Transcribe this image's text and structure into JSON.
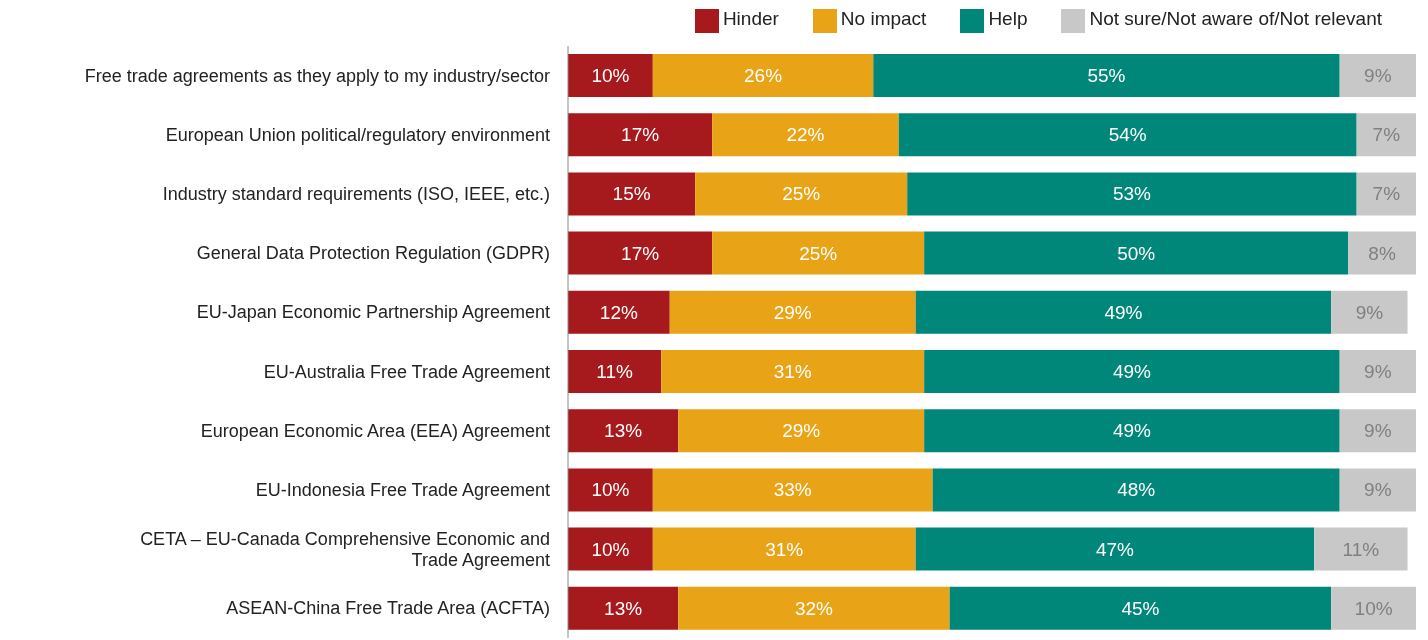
{
  "chart_data": {
    "type": "bar",
    "orientation": "horizontal",
    "stacked": true,
    "legend": "top right",
    "tick_labels": "y",
    "xlim": [
      0,
      100
    ],
    "categories": [
      "Free trade agreements as they apply to my industry/sector",
      "European Union political/regulatory environment",
      "Industry standard requirements (ISO, IEEE, etc.)",
      "General Data Protection Regulation (GDPR)",
      "EU-Japan Economic Partnership Agreement",
      "EU-Australia Free Trade Agreement",
      "European Economic Area (EEA) Agreement",
      "EU-Indonesia Free Trade Agreement",
      "CETA – EU-Canada Comprehensive Economic and Trade Agreement",
      "ASEAN-China Free Trade Area (ACFTA)"
    ],
    "series": [
      {
        "name": "Hinder",
        "color": "#a6191c",
        "values": [
          10,
          17,
          15,
          17,
          12,
          11,
          13,
          10,
          10,
          13
        ],
        "value_labels": [
          "10%",
          "17%",
          "15%",
          "17%",
          "12%",
          "11%",
          "13%",
          "10%",
          "10%",
          "13%"
        ]
      },
      {
        "name": "No impact",
        "color": "#e8a317",
        "values": [
          26,
          22,
          25,
          25,
          29,
          31,
          29,
          33,
          31,
          32
        ],
        "value_labels": [
          "26%",
          "22%",
          "25%",
          "25%",
          "29%",
          "31%",
          "29%",
          "33%",
          "31%",
          "32%"
        ]
      },
      {
        "name": "Help",
        "color": "#00877a",
        "values": [
          55,
          54,
          53,
          50,
          49,
          49,
          49,
          48,
          47,
          45
        ],
        "value_labels": [
          "55%",
          "54%",
          "53%",
          "50%",
          "49%",
          "49%",
          "49%",
          "48%",
          "47%",
          "45%"
        ]
      },
      {
        "name": "Not sure/Not aware of/Not relevant",
        "color": "#c8c8c8",
        "values": [
          9,
          7,
          7,
          8,
          9,
          9,
          9,
          9,
          11,
          10
        ],
        "value_labels": [
          "9%",
          "7%",
          "7%",
          "8%",
          "9%",
          "9%",
          "9%",
          "9%",
          "11%",
          "10%"
        ]
      }
    ]
  }
}
